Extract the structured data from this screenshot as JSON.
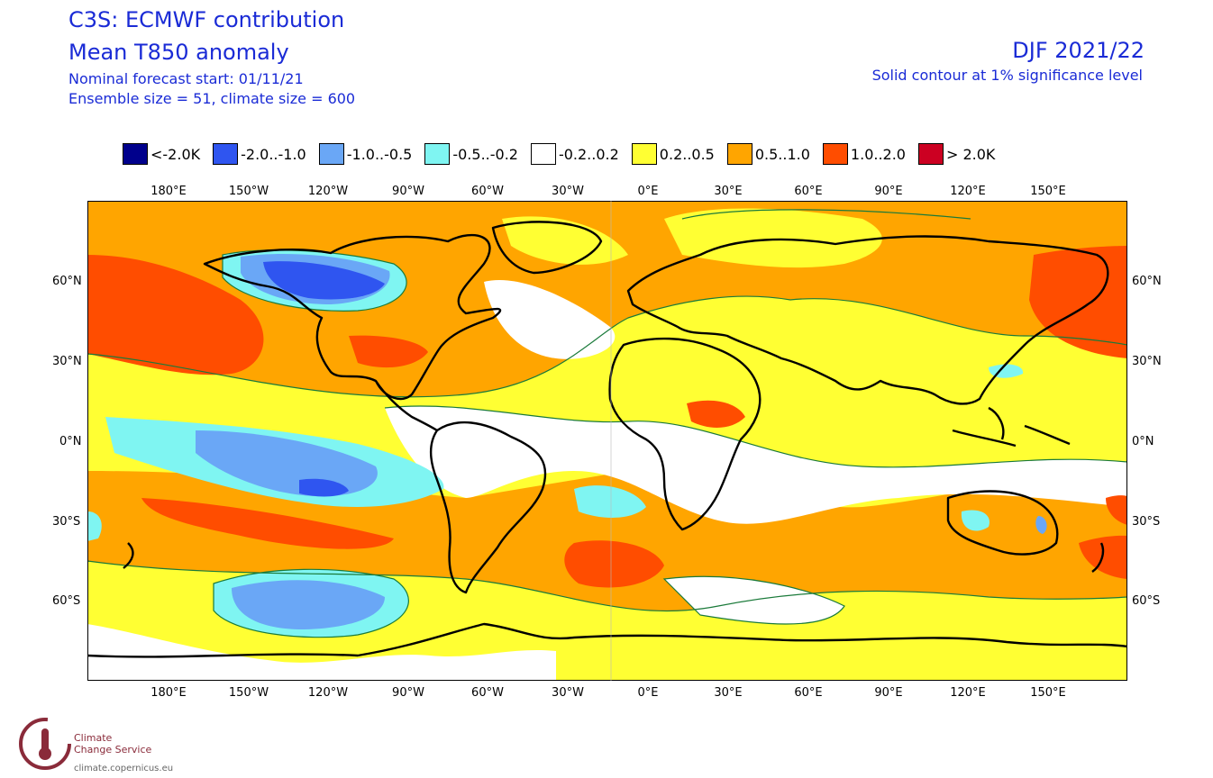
{
  "header": {
    "title": "C3S: ECMWF contribution",
    "subtitle": "Mean T850 anomaly",
    "forecast_start": "Nominal forecast start: 01/11/21",
    "ensemble": "Ensemble size = 51, climate size = 600",
    "season": "DJF 2021/22",
    "significance": "Solid contour at 1% significance level"
  },
  "legend": [
    {
      "label": "<-2.0K",
      "color": "#00008c"
    },
    {
      "label": "-2.0..-1.0",
      "color": "#2f55f0"
    },
    {
      "label": "-1.0..-0.5",
      "color": "#6aa7f6"
    },
    {
      "label": "-0.5..-0.2",
      "color": "#7ff5f2"
    },
    {
      "label": "-0.2..0.2",
      "color": "#ffffff"
    },
    {
      "label": "0.2..0.5",
      "color": "#ffff33"
    },
    {
      "label": "0.5..1.0",
      "color": "#ffa500"
    },
    {
      "label": "1.0..2.0",
      "color": "#ff4d00"
    },
    {
      "label": "> 2.0K",
      "color": "#cc0022"
    }
  ],
  "lon_labels": [
    "180°E",
    "150°W",
    "120°W",
    "90°W",
    "60°W",
    "30°W",
    "0°E",
    "30°E",
    "60°E",
    "90°E",
    "120°E",
    "150°E"
  ],
  "lat_labels": [
    "60°N",
    "30°N",
    "0°N",
    "30°S",
    "60°S"
  ],
  "footer": {
    "logo_line1": "Climate",
    "logo_line2": "Change Service",
    "url": "climate.copernicus.eu"
  }
}
